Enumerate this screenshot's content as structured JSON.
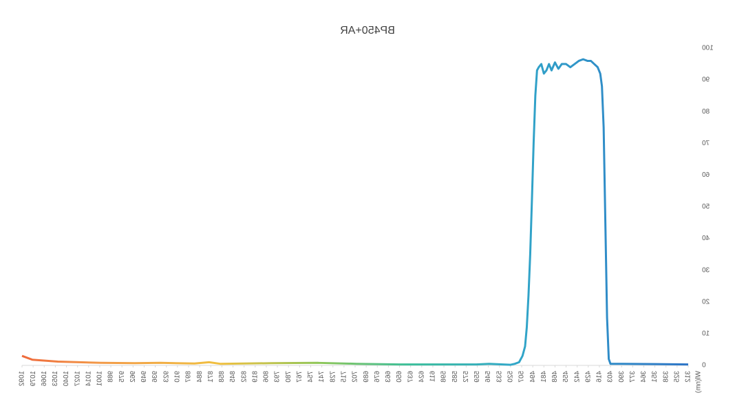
{
  "chart_data": {
    "type": "line",
    "title": "BP450+AR",
    "x_label": "Wl(nm)",
    "x": [
      312,
      350,
      390,
      400,
      403,
      405,
      407,
      409,
      411,
      413,
      415,
      418,
      422,
      426,
      430,
      435,
      440,
      445,
      450,
      455,
      460,
      464,
      468,
      472,
      475,
      478,
      481,
      484,
      487,
      489,
      491,
      493,
      495,
      497,
      499,
      501,
      503,
      506,
      510,
      515,
      520,
      545,
      560,
      650,
      700,
      745,
      800,
      860,
      873,
      890,
      930,
      960,
      1000,
      1050,
      1080,
      1092
    ],
    "values": [
      0.3,
      0.4,
      0.5,
      0.5,
      0.5,
      2,
      15,
      45,
      75,
      88,
      92,
      94,
      95,
      96,
      96,
      96.5,
      96,
      95,
      94,
      95,
      95,
      93.5,
      95.5,
      93,
      95,
      93,
      92,
      95,
      94,
      93,
      85,
      70,
      52,
      35,
      22,
      12,
      6,
      3,
      1,
      0.5,
      0.2,
      0.5,
      0.3,
      0.3,
      0.5,
      0.8,
      0.7,
      0.5,
      1,
      0.6,
      0.8,
      0.7,
      0.8,
      1.2,
      1.8,
      3
    ],
    "xlim": [
      312,
      1092
    ],
    "xticks": [
      312,
      325,
      338,
      351,
      364,
      377,
      390,
      403,
      416,
      429,
      442,
      455,
      468,
      481,
      494,
      507,
      520,
      533,
      546,
      559,
      572,
      585,
      598,
      611,
      624,
      637,
      650,
      663,
      676,
      689,
      702,
      715,
      728,
      741,
      754,
      767,
      780,
      793,
      806,
      819,
      832,
      845,
      858,
      871,
      884,
      897,
      910,
      923,
      936,
      949,
      962,
      975,
      988,
      1001,
      1014,
      1027,
      1040,
      1053,
      1066,
      1079,
      1092
    ],
    "ylim": [
      0,
      100
    ],
    "yticks": [
      0,
      10,
      20,
      30,
      40,
      50,
      60,
      70,
      80,
      90,
      100
    ],
    "color_stops": [
      [
        312,
        "#2e75c7"
      ],
      [
        520,
        "#31a8c8"
      ],
      [
        640,
        "#3cbf9a"
      ],
      [
        740,
        "#8cc65a"
      ],
      [
        860,
        "#f0c040"
      ],
      [
        1000,
        "#f29a48"
      ],
      [
        1092,
        "#ef6a3c"
      ]
    ]
  }
}
